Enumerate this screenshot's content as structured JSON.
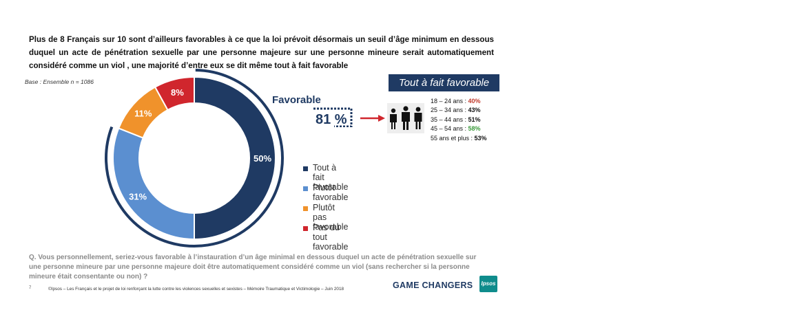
{
  "title": "Plus de 8 Français sur 10 sont d’ailleurs favorables à ce que la loi prévoit désormais un seuil d’âge minimum en dessous duquel un acte de pénétration sexuelle par une personne majeure sur une personne mineure serait automatiquement considéré comme un viol , une majorité d’entre eux se dit même tout à fait favorable",
  "base": "Base : Ensemble n = 1086",
  "favorable": {
    "label": "Favorable",
    "value": "81 %"
  },
  "tout_a_fait": {
    "header": "Tout à fait favorable",
    "rows": [
      {
        "label": "18 – 24 ans : ",
        "value": "40%",
        "color": "#c0392b"
      },
      {
        "label": "25 – 34 ans : ",
        "value": "43%",
        "color": "#111111"
      },
      {
        "label": "35 – 44 ans : ",
        "value": "51%",
        "color": "#111111"
      },
      {
        "label": "45 – 54 ans : ",
        "value": "58%",
        "color": "#3a9a3a"
      },
      {
        "label": "55 ans et plus : ",
        "value": "53%",
        "color": "#111111"
      }
    ]
  },
  "chart_data": {
    "type": "pie",
    "donut": true,
    "categories": [
      "Tout à fait favorable",
      "Plutôt favorable",
      "Plutôt pas favorable",
      "Pas du tout favorable"
    ],
    "values": [
      50,
      31,
      11,
      8
    ],
    "labels": [
      "50%",
      "31%",
      "11%",
      "8%"
    ],
    "colors": [
      "#1f3a63",
      "#5b8fd0",
      "#f0922b",
      "#d0262d"
    ],
    "legend_position": "right"
  },
  "question": "Q. Vous personnellement, seriez-vous favorable à l’instauration d’un âge minimal en dessous duquel un acte de pénétration sexuelle sur une personne mineure par une personne majeure doit être automatiquement considéré comme un viol (sans rechercher si la personne mineure était consentante ou non) ?",
  "page_number": "7",
  "footer": "©Ipsos – Les Français et le projet de loi renforçant la lutte contre les violences sexuelles et sexistes – Mémoire Traumatique et Victimologie – Juin 2018",
  "brand": {
    "game_changers": "GAME CHANGERS",
    "logo": "Ipsos"
  }
}
